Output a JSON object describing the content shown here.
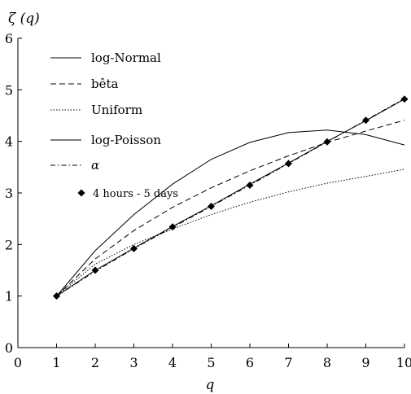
{
  "chart_data": {
    "type": "line",
    "title": "",
    "xlabel": "q",
    "ylabel": "ζ (q)",
    "xlim": [
      0,
      10
    ],
    "ylim": [
      0,
      6
    ],
    "x_ticks": [
      "0",
      "1",
      "2",
      "3",
      "4",
      "5",
      "6",
      "7",
      "8",
      "9",
      "10"
    ],
    "y_ticks": [
      "0",
      "1",
      "2",
      "3",
      "4",
      "5",
      "6"
    ],
    "grid": false,
    "legend_position": "top-left",
    "x": [
      1,
      2,
      3,
      4,
      5,
      6,
      7,
      8,
      9,
      10
    ],
    "series": [
      {
        "name": "log-Normal",
        "style": "solid",
        "values": [
          1.0,
          1.88,
          2.58,
          3.17,
          3.65,
          3.98,
          4.17,
          4.22,
          4.13,
          3.93
        ]
      },
      {
        "name": "bêta",
        "style": "dashed",
        "values": [
          1.0,
          1.72,
          2.27,
          2.72,
          3.1,
          3.43,
          3.72,
          3.98,
          4.2,
          4.41
        ]
      },
      {
        "name": "Uniform",
        "style": "dotted",
        "values": [
          1.0,
          1.62,
          2.0,
          2.3,
          2.58,
          2.82,
          3.02,
          3.19,
          3.32,
          3.46
        ]
      },
      {
        "name": "log-Poisson",
        "style": "solid-thin",
        "values": [
          1.0,
          1.5,
          1.93,
          2.35,
          2.75,
          3.17,
          3.58,
          4.0,
          4.4,
          4.82
        ]
      },
      {
        "name": "α",
        "style": "dashdot",
        "values": [
          1.0,
          1.48,
          1.92,
          2.33,
          2.74,
          3.15,
          3.57,
          3.99,
          4.41,
          4.83
        ]
      },
      {
        "name": "4 hours - 5 days",
        "style": "markers",
        "values": [
          1.0,
          1.5,
          1.92,
          2.34,
          2.74,
          3.15,
          3.57,
          3.99,
          4.41,
          4.82
        ]
      }
    ]
  }
}
